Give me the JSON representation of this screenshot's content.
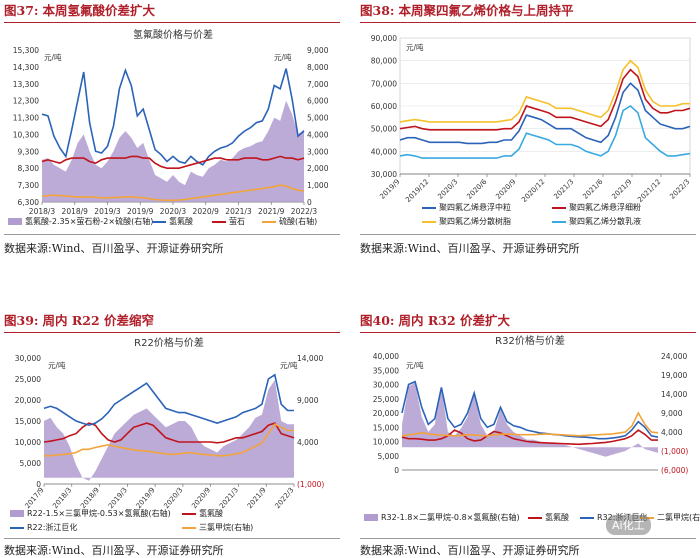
{
  "panels": [
    {
      "id": "37",
      "title_num": "图37:",
      "title_text": "本周氢氟酸价差扩大",
      "source": "数据来源:Wind、百川盈孚、开源证券研究所",
      "chart_data": {
        "type": "line",
        "title": "氢氟酸价格与价差",
        "unit_left": "元/吨",
        "unit_right": "元/吨",
        "x_ticks": [
          "2018/3",
          "2018/9",
          "2019/3",
          "2019/9",
          "2020/3",
          "2020/9",
          "2021/3",
          "2021/9",
          "2022/3"
        ],
        "ylim_left": [
          6300,
          15300
        ],
        "yticks_left": [
          "6,300",
          "7,300",
          "8,300",
          "9,300",
          "10,300",
          "11,300",
          "12,300",
          "13,300",
          "14,300",
          "15,300"
        ],
        "ylim_right": [
          0,
          9000
        ],
        "yticks_right": [
          "0",
          "1,000",
          "2,000",
          "3,000",
          "4,000",
          "5,000",
          "6,000",
          "7,000",
          "8,000",
          "9,000"
        ],
        "series": [
          {
            "name": "氢氟酸-2.35×萤石粉-2×硫酸(右轴)",
            "axis": "right",
            "style": "area",
            "color": "#b19cd0",
            "values": [
              2500,
              2600,
              2200,
              2000,
              1800,
              2500,
              3500,
              4000,
              3000,
              2200,
              2000,
              2400,
              3000,
              3800,
              4200,
              3800,
              3200,
              3500,
              2500,
              1600,
              1400,
              1200,
              1600,
              1200,
              1000,
              1800,
              1600,
              1500,
              2000,
              2200,
              2500,
              2400,
              2600,
              3000,
              3200,
              3300,
              3500,
              3600,
              4200,
              5000,
              4800,
              6000,
              5200,
              4000,
              4300
            ]
          },
          {
            "name": "氢氟酸",
            "axis": "left",
            "style": "line",
            "color": "#2a63b8",
            "values": [
              11500,
              11400,
              10200,
              9500,
              9000,
              10600,
              12300,
              14000,
              11000,
              9300,
              9200,
              9600,
              10800,
              13000,
              14100,
              13200,
              11400,
              11800,
              10600,
              9400,
              9100,
              8700,
              9000,
              8700,
              8600,
              9000,
              8700,
              8500,
              9000,
              9300,
              9500,
              9600,
              9800,
              10200,
              10500,
              10700,
              11000,
              11100,
              11800,
              13200,
              13000,
              14200,
              12400,
              10200,
              10500
            ]
          },
          {
            "name": "萤石",
            "axis": "left",
            "style": "line",
            "color": "#c0141c",
            "values": [
              8700,
              8800,
              8700,
              8600,
              8800,
              8900,
              8900,
              8900,
              8700,
              8600,
              8800,
              8900,
              8900,
              8900,
              8900,
              9000,
              9000,
              8900,
              8900,
              8600,
              8400,
              8300,
              8300,
              8300,
              8400,
              8500,
              8600,
              8700,
              8800,
              8900,
              8900,
              8800,
              8800,
              8800,
              8900,
              8900,
              8900,
              8800,
              8800,
              8900,
              9000,
              8900,
              8900,
              8800,
              8900
            ]
          },
          {
            "name": "硫酸(右轴)",
            "axis": "right",
            "style": "line",
            "color": "#f2a33a",
            "values": [
              350,
              380,
              400,
              380,
              350,
              320,
              300,
              300,
              300,
              280,
              250,
              250,
              260,
              280,
              300,
              300,
              280,
              250,
              200,
              150,
              120,
              100,
              100,
              120,
              150,
              200,
              250,
              300,
              350,
              400,
              450,
              500,
              550,
              600,
              650,
              700,
              750,
              800,
              850,
              900,
              1000,
              950,
              800,
              700,
              650
            ]
          }
        ]
      }
    },
    {
      "id": "38",
      "title_num": "图38:",
      "title_text": "本周聚四氟乙烯价格与上周持平",
      "source": "数据来源:Wind、百川盈孚、开源证券研究所",
      "chart_data": {
        "type": "line",
        "title": "",
        "unit_left": "元/吨",
        "x_ticks": [
          "2019/9",
          "2019/12",
          "2020/3",
          "2020/6",
          "2020/9",
          "2020/12",
          "2021/3",
          "2021/6",
          "2021/9",
          "2021/12",
          "2022/3"
        ],
        "ylim_left": [
          30000,
          90000
        ],
        "yticks_left": [
          "30,000",
          "40,000",
          "50,000",
          "60,000",
          "70,000",
          "80,000",
          "90,000"
        ],
        "series": [
          {
            "name": "聚四氟乙烯悬浮中粒",
            "color": "#2a63b8",
            "values": [
              45000,
              46000,
              46000,
              45000,
              44000,
              44000,
              44000,
              44000,
              44000,
              43500,
              43500,
              43500,
              44000,
              44000,
              45000,
              45000,
              49000,
              56000,
              55000,
              54000,
              52000,
              50000,
              50000,
              50000,
              48000,
              46000,
              45000,
              44000,
              47000,
              55000,
              66000,
              70000,
              67000,
              58000,
              55000,
              52000,
              51000,
              50000,
              50000,
              51000
            ]
          },
          {
            "name": "聚四氟乙烯悬浮细粉",
            "color": "#c0141c",
            "values": [
              50000,
              50500,
              51000,
              50000,
              49500,
              49500,
              49500,
              49500,
              49500,
              49500,
              49500,
              49500,
              49500,
              49500,
              50000,
              50000,
              53000,
              60000,
              59000,
              58000,
              57000,
              55000,
              55000,
              55000,
              54000,
              53000,
              52000,
              51000,
              54000,
              62000,
              72000,
              76000,
              73000,
              63000,
              59000,
              57000,
              57000,
              58000,
              58000,
              59000
            ]
          },
          {
            "name": "聚四氟乙烯分散树脂",
            "color": "#f5c12b",
            "values": [
              53000,
              53500,
              54000,
              53500,
              53000,
              53000,
              53000,
              53000,
              53000,
              53000,
              53000,
              53000,
              53000,
              53000,
              53500,
              54000,
              57000,
              64000,
              63000,
              62000,
              61000,
              59000,
              59000,
              59000,
              58000,
              57000,
              56000,
              55000,
              58000,
              66000,
              76000,
              80000,
              77000,
              67000,
              62000,
              60000,
              60000,
              60000,
              61000,
              61000
            ]
          },
          {
            "name": "聚四氟乙烯分散乳液",
            "color": "#39a9e0",
            "values": [
              38000,
              38500,
              38000,
              37000,
              37000,
              37000,
              37000,
              37000,
              37000,
              37000,
              37000,
              37000,
              37000,
              37000,
              38000,
              38000,
              41000,
              48000,
              47000,
              46000,
              45000,
              43000,
              43000,
              43000,
              42000,
              40000,
              39000,
              38000,
              40000,
              47000,
              58000,
              60000,
              57000,
              46000,
              43000,
              40000,
              38000,
              38000,
              38500,
              39000
            ]
          }
        ]
      }
    },
    {
      "id": "39",
      "title_num": "图39:",
      "title_text": "周内 R22 价差缩窄",
      "source": "数据来源:Wind、百川盈孚、开源证券研究所",
      "chart_data": {
        "type": "line",
        "title": "R22价格与价差",
        "unit_left": "元/吨",
        "unit_right": "元/吨",
        "x_ticks": [
          "2017/9",
          "2018/3",
          "2018/9",
          "2019/3",
          "2019/9",
          "2020/3",
          "2020/9",
          "2021/3",
          "2021/9",
          "2022/3"
        ],
        "ylim_left": [
          0,
          30000
        ],
        "yticks_left": [
          "0",
          "5,000",
          "10,000",
          "15,000",
          "20,000",
          "25,000",
          "30,000"
        ],
        "ylim_right": [
          -1000,
          19000
        ],
        "yticks_right": [
          "(1,000)",
          "4,000",
          "9,000",
          "14,000"
        ],
        "series": [
          {
            "name": "R22-1.5×三氯甲烷-0.53×氢氟酸(右轴)",
            "axis": "right",
            "style": "area",
            "color": "#b19cd0",
            "values": [
              9000,
              9500,
              8000,
              7000,
              5000,
              2000,
              0,
              -500,
              1000,
              3000,
              5000,
              7000,
              8000,
              9000,
              10000,
              10500,
              11000,
              10000,
              9000,
              8000,
              8500,
              9000,
              9000,
              8000,
              6000,
              5000,
              4500,
              4000,
              5000,
              5500,
              6000,
              7000,
              8000,
              9500,
              10000,
              14000,
              15500,
              9000,
              8500,
              8500
            ]
          },
          {
            "name": "氢氟酸",
            "axis": "left",
            "style": "line",
            "color": "#c0141c",
            "values": [
              10000,
              10200,
              10500,
              10800,
              11500,
              12000,
              13500,
              14500,
              14000,
              12000,
              10500,
              10000,
              10500,
              12000,
              13500,
              14000,
              14500,
              14000,
              12500,
              11000,
              10500,
              10000,
              10000,
              10000,
              10000,
              10000,
              10000,
              9800,
              10000,
              10500,
              11000,
              11000,
              11500,
              12000,
              12500,
              14000,
              14500,
              12000,
              11500,
              11000
            ]
          },
          {
            "name": "R22:浙江巨化",
            "axis": "left",
            "style": "line",
            "color": "#2a63b8",
            "values": [
              18000,
              18500,
              18000,
              17000,
              16000,
              15000,
              14500,
              14000,
              14500,
              15500,
              17000,
              19000,
              20000,
              21000,
              22000,
              23000,
              24000,
              22000,
              20000,
              18000,
              17500,
              17000,
              17000,
              16500,
              16000,
              15500,
              15000,
              14500,
              15000,
              15500,
              16000,
              17000,
              17500,
              18000,
              19000,
              25000,
              26000,
              19000,
              17500,
              17500
            ]
          },
          {
            "name": "三氯甲烷(右轴)",
            "axis": "right",
            "style": "line",
            "color": "#f2a33a",
            "values": [
              3500,
              3500,
              3600,
              3700,
              3800,
              4000,
              4500,
              4500,
              4800,
              5000,
              5200,
              5000,
              4800,
              4600,
              4400,
              4300,
              4200,
              4100,
              3900,
              3800,
              3700,
              3800,
              3900,
              4000,
              3800,
              3700,
              3600,
              3500,
              3500,
              3600,
              3800,
              4000,
              4500,
              5000,
              5500,
              7000,
              8500,
              8000,
              7500,
              7500
            ]
          }
        ]
      }
    },
    {
      "id": "40",
      "title_num": "图40:",
      "title_text": "周内 R32 价差扩大",
      "source": "数据来源:Wind、百川盈孚、开源证券研究所",
      "chart_data": {
        "type": "line",
        "title": "R32价格与价差",
        "unit_left": "元/吨",
        "ylim_left": [
          0,
          40000
        ],
        "yticks_left": [
          "0",
          "5,000",
          "10,000",
          "15,000",
          "20,000",
          "25,000",
          "30,000",
          "35,000",
          "40,000"
        ],
        "ylim_right": [
          -6000,
          24000
        ],
        "yticks_right": [
          "(6,000)",
          "(1,000)",
          "4,000",
          "9,000",
          "14,000",
          "19,000",
          "24,000"
        ],
        "series": [
          {
            "name": "R32-1.8×二氯甲烷-0.8×氢氟酸(右轴)",
            "axis": "right",
            "style": "area",
            "color": "#b19cd0",
            "values": [
              6000,
              16000,
              17000,
              8000,
              4000,
              6000,
              16000,
              4000,
              3000,
              5000,
              8000,
              14000,
              6000,
              3000,
              4000,
              10000,
              6000,
              4000,
              3000,
              2000,
              2000,
              1500,
              1000,
              1000,
              800,
              500,
              0,
              -500,
              -1000,
              -1500,
              -2000,
              -2500,
              -2000,
              -1500,
              -1000,
              0,
              1000,
              -500,
              -1000,
              -1500
            ]
          },
          {
            "name": "氢氟酸",
            "axis": "left",
            "style": "line",
            "color": "#c0141c",
            "values": [
              11500,
              11000,
              11000,
              10800,
              10500,
              10500,
              11000,
              12000,
              14000,
              13000,
              11000,
              10200,
              10500,
              12000,
              13500,
              13000,
              12000,
              11000,
              10500,
              10000,
              9800,
              9600,
              9500,
              9400,
              9300,
              9200,
              9100,
              9000,
              9200,
              9300,
              9500,
              9700,
              10000,
              10500,
              11000,
              12000,
              14000,
              12500,
              10500,
              10500
            ]
          },
          {
            "name": "R32:浙江巨化",
            "axis": "left",
            "style": "line",
            "color": "#2a63b8",
            "values": [
              20000,
              30000,
              31000,
              22000,
              16000,
              18000,
              29000,
              18000,
              15000,
              16000,
              20000,
              27000,
              18000,
              15000,
              16000,
              22000,
              17000,
              15500,
              15000,
              14000,
              13500,
              13000,
              12800,
              12500,
              12300,
              12000,
              11800,
              11600,
              11500,
              11300,
              11000,
              11000,
              11200,
              11500,
              12000,
              14000,
              17000,
              15000,
              12000,
              11500
            ]
          },
          {
            "name": "二氯甲烷(右轴)",
            "axis": "right",
            "style": "line",
            "color": "#f2a33a",
            "values": [
              3000,
              3200,
              3500,
              3800,
              3500,
              3300,
              3200,
              3100,
              3000,
              3100,
              3300,
              3200,
              3100,
              3000,
              3200,
              3400,
              3500,
              3400,
              3300,
              3300,
              3300,
              3400,
              3500,
              3400,
              3300,
              3200,
              3100,
              3000,
              3100,
              3200,
              3300,
              3400,
              3500,
              3700,
              4000,
              5500,
              9000,
              6000,
              4000,
              3800
            ]
          }
        ]
      }
    }
  ],
  "watermark": "Ai化工"
}
